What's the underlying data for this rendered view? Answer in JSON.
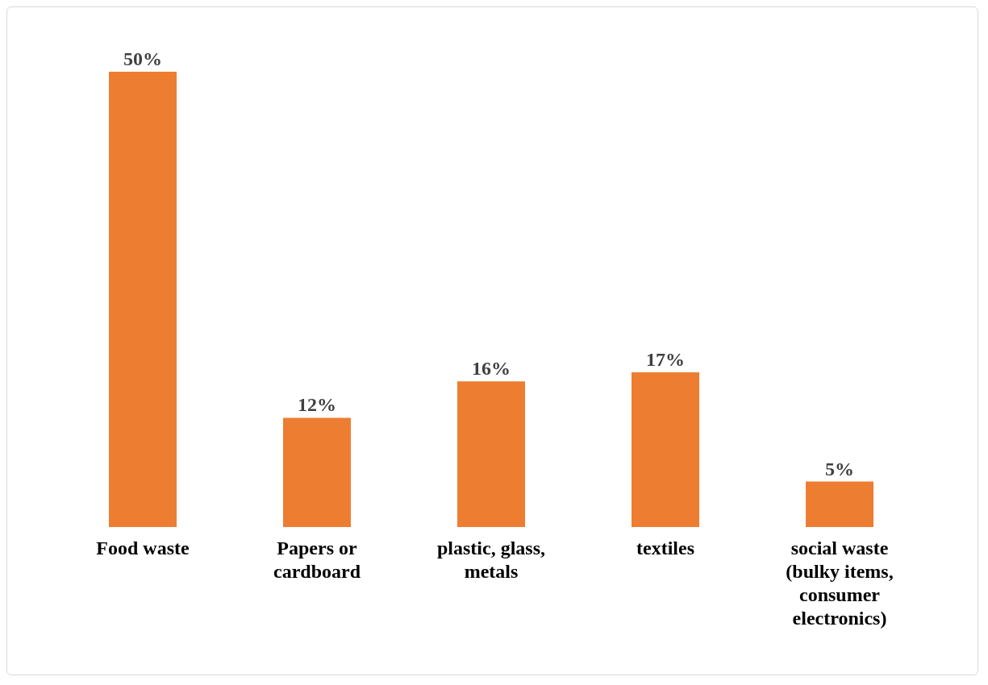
{
  "chart_data": {
    "type": "bar",
    "categories": [
      "Food waste",
      "Papers or cardboard",
      "plastic, glass, metals",
      "textiles",
      "social waste (bulky items, consumer electronics)"
    ],
    "values": [
      50,
      12,
      16,
      17,
      5
    ],
    "value_labels": [
      "50%",
      "12%",
      "16%",
      "17%",
      "5%"
    ],
    "color": "#ed7d31",
    "grid": false,
    "legend": false
  }
}
